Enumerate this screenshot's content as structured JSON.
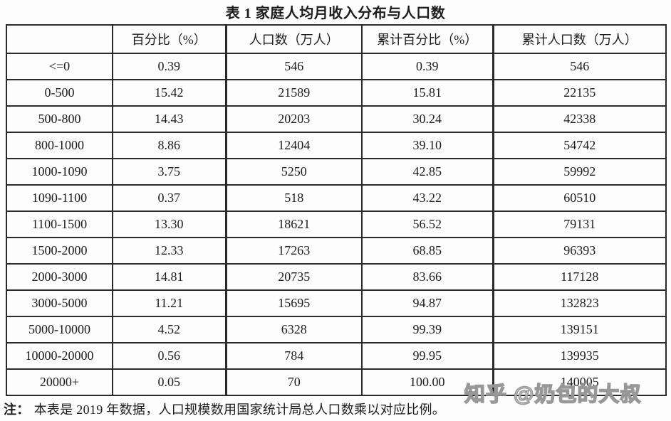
{
  "page": {
    "title": "表 1 家庭人均月收入分布与人口数",
    "note_label": "注：",
    "note_text": "本表是 2019 年数据，人口规模数用国家统计局总人口数乘以对应比例。",
    "watermark": "知乎 @奶包的大叔"
  },
  "table": {
    "columns": [
      "",
      "百分比（%）",
      "人口数（万人）",
      "累计百分比（%）",
      "累计人口数（万人）"
    ],
    "rows": [
      [
        "<=0",
        "0.39",
        "546",
        "0.39",
        "546"
      ],
      [
        "0-500",
        "15.42",
        "21589",
        "15.81",
        "22135"
      ],
      [
        "500-800",
        "14.43",
        "20203",
        "30.24",
        "42338"
      ],
      [
        "800-1000",
        "8.86",
        "12404",
        "39.10",
        "54742"
      ],
      [
        "1000-1090",
        "3.75",
        "5250",
        "42.85",
        "59992"
      ],
      [
        "1090-1100",
        "0.37",
        "518",
        "43.22",
        "60510"
      ],
      [
        "1100-1500",
        "13.30",
        "18621",
        "56.52",
        "79131"
      ],
      [
        "1500-2000",
        "12.33",
        "17263",
        "68.85",
        "96393"
      ],
      [
        "2000-3000",
        "14.81",
        "20735",
        "83.66",
        "117128"
      ],
      [
        "3000-5000",
        "11.21",
        "15695",
        "94.87",
        "132823"
      ],
      [
        "5000-10000",
        "4.52",
        "6328",
        "99.39",
        "139151"
      ],
      [
        "10000-20000",
        "0.56",
        "784",
        "99.95",
        "139935"
      ],
      [
        "20000+",
        "0.05",
        "70",
        "100.00",
        "140005"
      ]
    ]
  }
}
